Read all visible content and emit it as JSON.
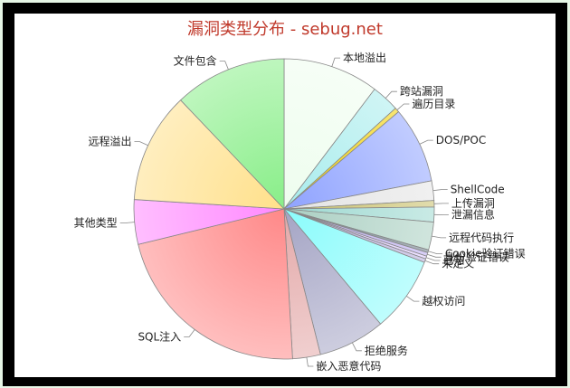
{
  "chart_data": {
    "type": "pie",
    "title": "漏洞类型分布 - sebug.net",
    "slices": [
      {
        "label": "本地溢出",
        "value": 10.3,
        "color": "#eefdee"
      },
      {
        "label": "跨站漏洞",
        "value": 3.0,
        "color": "#a8ecec"
      },
      {
        "label": "遍历目录",
        "value": 0.5,
        "color": "#f0d000"
      },
      {
        "label": "DOS/POC",
        "value": 8.2,
        "color": "#8ea2ff"
      },
      {
        "label": "ShellCode",
        "value": 2.1,
        "color": "#e4e4e4"
      },
      {
        "label": "上传漏洞",
        "value": 0.7,
        "color": "#c8c06a"
      },
      {
        "label": "泄漏信息",
        "value": 1.6,
        "color": "#9cd8d0"
      },
      {
        "label": "远程代码执行",
        "value": 3.0,
        "color": "#aacfc2"
      },
      {
        "label": "Cookie验证错误",
        "value": 0.3,
        "color": "#6b7e8a"
      },
      {
        "label": "身份验证错误",
        "value": 0.4,
        "color": "#b8a8ee"
      },
      {
        "label": "已知",
        "value": 0.3,
        "color": "#ddc8ff"
      },
      {
        "label": "未定义",
        "value": 0.4,
        "color": "#b2aad8"
      },
      {
        "label": "越权访问",
        "value": 8.1,
        "color": "#8afcfc"
      },
      {
        "label": "拒绝服务",
        "value": 7.2,
        "color": "#a4a4c4"
      },
      {
        "label": "嵌入恶意代码",
        "value": 3.0,
        "color": "#e3a8a8"
      },
      {
        "label": "SQL注入",
        "value": 22.1,
        "color": "#ff8888"
      },
      {
        "label": "其他类型",
        "value": 4.8,
        "color": "#ff88ff"
      },
      {
        "label": "远程溢出",
        "value": 11.9,
        "color": "#ffe08a"
      },
      {
        "label": "文件包含",
        "value": 12.1,
        "color": "#88ee88"
      }
    ],
    "start_angle_deg": -90,
    "direction": "clockwise",
    "legend": "none"
  }
}
